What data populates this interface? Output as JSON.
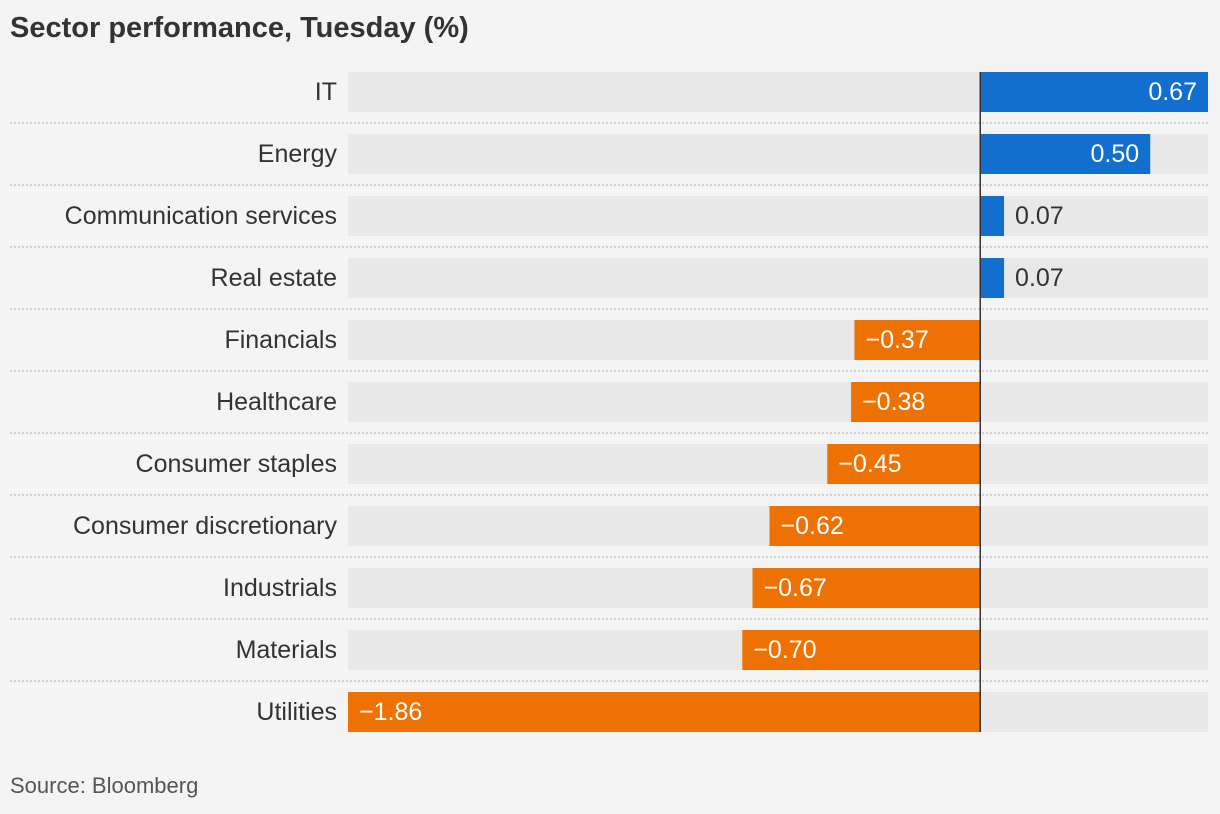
{
  "chart_data": {
    "type": "bar",
    "orientation": "horizontal",
    "title": "Sector performance, Tuesday (%)",
    "source": "Source: Bloomberg",
    "categories": [
      "IT",
      "Energy",
      "Communication services",
      "Real estate",
      "Financials",
      "Healthcare",
      "Consumer staples",
      "Consumer discretionary",
      "Industrials",
      "Materials",
      "Utilities"
    ],
    "values": [
      0.67,
      0.5,
      0.07,
      0.07,
      -0.37,
      -0.38,
      -0.45,
      -0.62,
      -0.67,
      -0.7,
      -1.86
    ],
    "value_labels": [
      "0.67",
      "0.50",
      "0.07",
      "0.07",
      "−0.37",
      "−0.38",
      "−0.45",
      "−0.62",
      "−0.67",
      "−0.70",
      "−1.86"
    ],
    "xlim": [
      -1.86,
      0.67
    ],
    "grid": false,
    "colors": {
      "positive": "#126fcd",
      "negative": "#ee7203",
      "track": "#e8e8e8",
      "zero_line": "#333333",
      "separator": "#c4c4c4"
    }
  }
}
